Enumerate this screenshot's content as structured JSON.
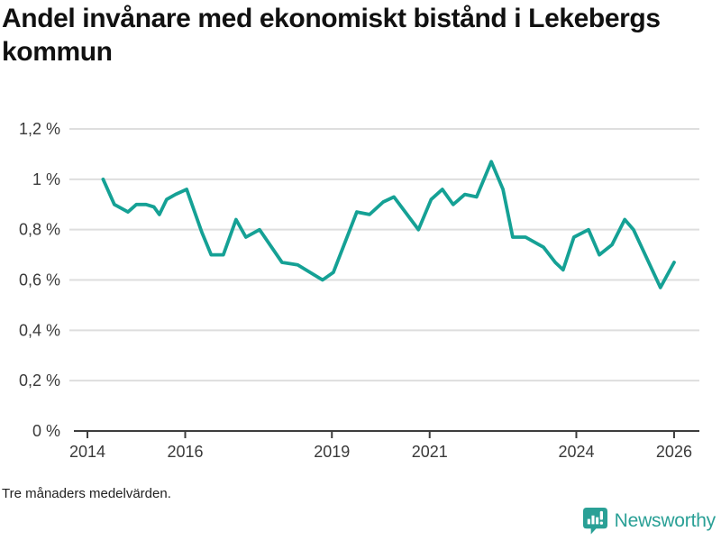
{
  "page": {
    "title": "Andel invånare med ekonomiskt bistånd i Lekebergs kommun",
    "footnote": "Tre månaders medelvärden.",
    "brand": {
      "name": "Newsworthy",
      "color": "#2aa096"
    }
  },
  "chart_data": {
    "type": "line",
    "title": "Andel invånare med ekonomiskt bistånd i Lekebergs kommun",
    "footnote": "Tre månaders medelvärden.",
    "legend": "none",
    "grid": "horizontal",
    "line_color": "#15a195",
    "grid_color": "#dedede",
    "axis_color": "#3d3d3d",
    "tick_label_color": "#3a3a3a",
    "x": {
      "min": 2013.631,
      "max": 2026.517,
      "ticks": [
        2014,
        2016,
        2019,
        2021,
        2024,
        2026
      ],
      "tick_labels": [
        "2014",
        "2016",
        "2019",
        "2021",
        "2024",
        "2026"
      ]
    },
    "y": {
      "min": 0,
      "max": 1.2,
      "unit": "%",
      "ticks": [
        0,
        0.2,
        0.4,
        0.6,
        0.8,
        1,
        1.2
      ],
      "tick_labels": [
        "0 %",
        "0,2 %",
        "0,4 %",
        "0,6 %",
        "0,8 %",
        "1 %",
        "1,2 %"
      ]
    },
    "series": [
      {
        "name": "Andel invånare med ekonomiskt bistånd",
        "color": "#15a195",
        "points": [
          [
            2014.32,
            1.0
          ],
          [
            2014.55,
            0.9
          ],
          [
            2014.83,
            0.87
          ],
          [
            2015.0,
            0.9
          ],
          [
            2015.2,
            0.9
          ],
          [
            2015.36,
            0.89
          ],
          [
            2015.47,
            0.86
          ],
          [
            2015.62,
            0.92
          ],
          [
            2015.8,
            0.94
          ],
          [
            2016.03,
            0.96
          ],
          [
            2016.34,
            0.79
          ],
          [
            2016.53,
            0.7
          ],
          [
            2016.78,
            0.7
          ],
          [
            2017.04,
            0.84
          ],
          [
            2017.24,
            0.77
          ],
          [
            2017.52,
            0.8
          ],
          [
            2017.98,
            0.67
          ],
          [
            2018.3,
            0.66
          ],
          [
            2018.81,
            0.6
          ],
          [
            2019.03,
            0.63
          ],
          [
            2019.51,
            0.87
          ],
          [
            2019.77,
            0.86
          ],
          [
            2020.05,
            0.91
          ],
          [
            2020.27,
            0.93
          ],
          [
            2020.77,
            0.8
          ],
          [
            2021.03,
            0.92
          ],
          [
            2021.26,
            0.96
          ],
          [
            2021.48,
            0.9
          ],
          [
            2021.72,
            0.94
          ],
          [
            2021.96,
            0.93
          ],
          [
            2022.26,
            1.07
          ],
          [
            2022.5,
            0.96
          ],
          [
            2022.7,
            0.77
          ],
          [
            2022.96,
            0.77
          ],
          [
            2023.33,
            0.73
          ],
          [
            2023.57,
            0.67
          ],
          [
            2023.73,
            0.64
          ],
          [
            2023.95,
            0.77
          ],
          [
            2024.25,
            0.8
          ],
          [
            2024.47,
            0.7
          ],
          [
            2024.73,
            0.74
          ],
          [
            2024.99,
            0.84
          ],
          [
            2025.17,
            0.8
          ],
          [
            2025.72,
            0.57
          ],
          [
            2026.0,
            0.67
          ]
        ]
      }
    ]
  }
}
